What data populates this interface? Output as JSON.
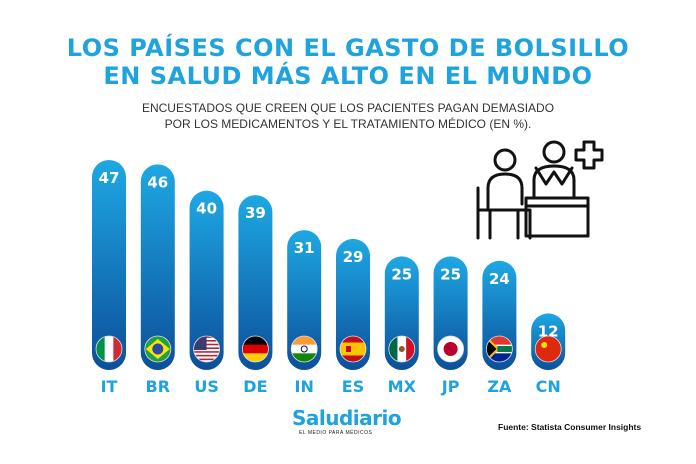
{
  "header": {
    "title_line1": "LOS PAÍSES CON EL GASTO DE BOLSILLO",
    "title_line2": "EN SALUD MÁS ALTO EN EL MUNDO",
    "subtitle_line1": "ENCUESTADOS QUE CREEN QUE LOS PACIENTES PAGAN DEMASIADO",
    "subtitle_line2": "POR LOS MEDICAMENTOS Y EL TRATAMIENTO MÉDICO (EN %)."
  },
  "footer": {
    "brand": "Saludiario",
    "tagline": "EL MEDIO PARA MÉDICOS",
    "source": "Fuente: Statista Consumer Insights"
  },
  "colors": {
    "accent": "#1ea3dc",
    "bar_top": "#1ea8e3",
    "bar_bottom": "#0c4f9a"
  },
  "icons": {
    "illustration": "doctor-patient-desk-icon"
  },
  "chart_data": {
    "type": "bar",
    "categories": [
      "IT",
      "BR",
      "US",
      "DE",
      "IN",
      "ES",
      "MX",
      "JP",
      "ZA",
      "CN"
    ],
    "values": [
      47,
      46,
      40,
      39,
      31,
      29,
      25,
      25,
      24,
      12
    ],
    "flags": [
      "italy-flag-icon",
      "brazil-flag-icon",
      "usa-flag-icon",
      "germany-flag-icon",
      "india-flag-icon",
      "spain-flag-icon",
      "mexico-flag-icon",
      "japan-flag-icon",
      "south-africa-flag-icon",
      "china-flag-icon"
    ],
    "ylim": [
      0,
      50
    ],
    "grid": false
  }
}
